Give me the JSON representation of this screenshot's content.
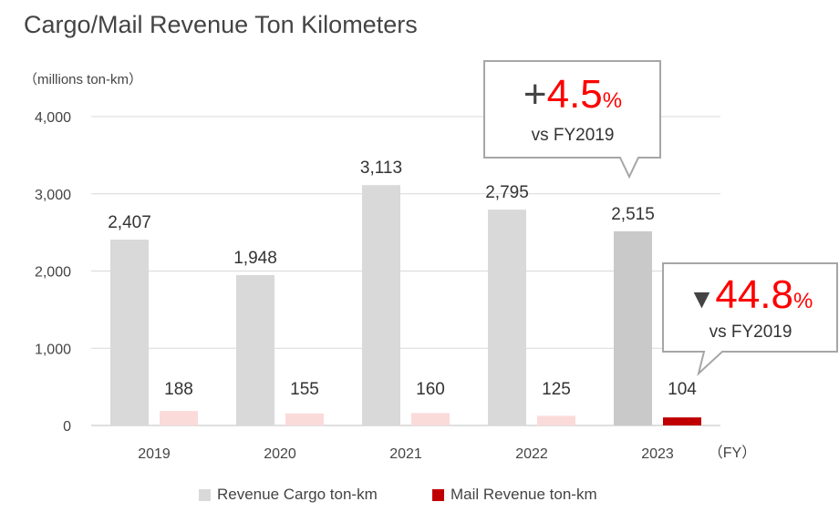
{
  "title": "Cargo/Mail Revenue Ton Kilometers",
  "unit": "（millions ton-km）",
  "fy_label": "（FY）",
  "colors": {
    "cargo": "#d9d9d9",
    "cargo_highlight": "#c9c9c9",
    "mail": "#fbdada",
    "mail_highlight": "#c00000",
    "accent_red": "#ff0000",
    "grid": "#d9d9d9",
    "callout_border": "#a6a6a6"
  },
  "callouts": {
    "cargo": {
      "sign": "+",
      "value": "4.5",
      "pct": "%",
      "sub": "vs FY2019"
    },
    "mail": {
      "sign": "▼",
      "value": "44.8",
      "pct": "%",
      "sub": "vs FY2019"
    }
  },
  "chart_data": {
    "type": "bar",
    "categories": [
      "2019",
      "2020",
      "2021",
      "2022",
      "2023"
    ],
    "series": [
      {
        "name": "Revenue Cargo ton-km",
        "values": [
          2407,
          1948,
          3113,
          2795,
          2515
        ]
      },
      {
        "name": "Mail Revenue ton-km",
        "values": [
          188,
          155,
          160,
          125,
          104
        ]
      }
    ],
    "data_labels": [
      [
        "2,407",
        "1,948",
        "3,113",
        "2,795",
        "2,515"
      ],
      [
        "188",
        "155",
        "160",
        "125",
        "104"
      ]
    ],
    "y_ticks": [
      "0",
      "1,000",
      "2,000",
      "3,000",
      "4,000"
    ],
    "y_tick_values": [
      0,
      1000,
      2000,
      3000,
      4000
    ],
    "ylim": [
      0,
      4000
    ],
    "grid": true,
    "legend_position": "bottom"
  }
}
